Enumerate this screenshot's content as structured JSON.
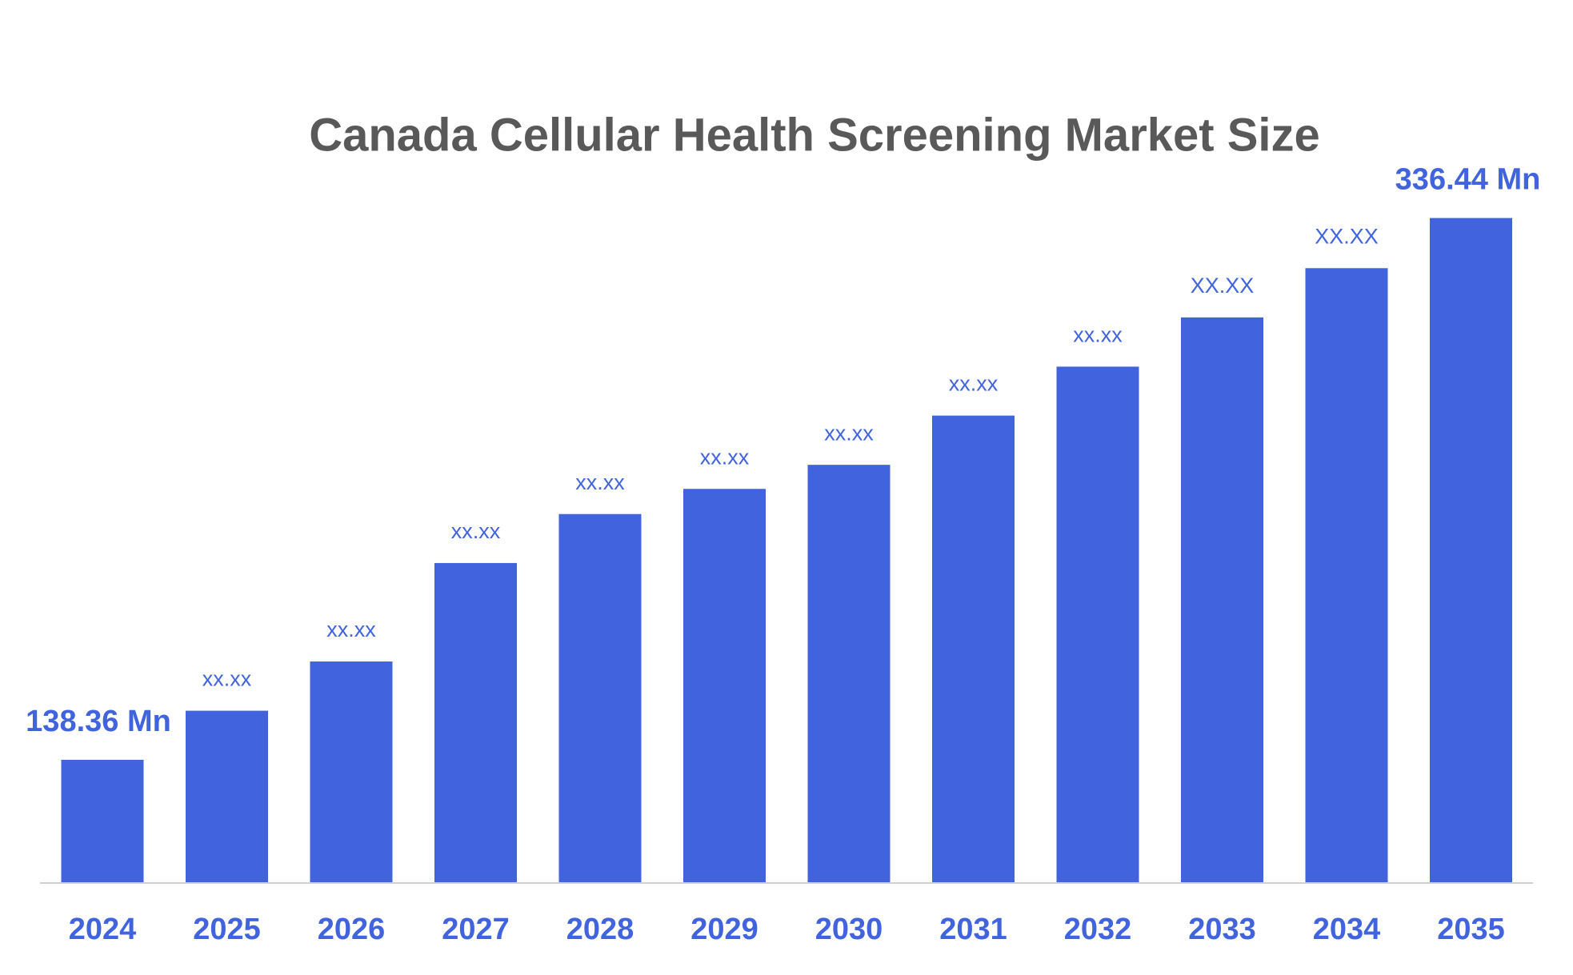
{
  "chart_data": {
    "type": "bar",
    "title": "Canada Cellular Health Screening Market Size",
    "categories": [
      "2024",
      "2025",
      "2026",
      "2027",
      "2028",
      "2029",
      "2030",
      "2031",
      "2032",
      "2033",
      "2034",
      "2035"
    ],
    "values": [
      138.36,
      156.3,
      174.3,
      210.3,
      228.2,
      237.4,
      246.2,
      264.2,
      282.1,
      300.1,
      318.1,
      336.44
    ],
    "value_labels": [
      "138.36 Mn",
      "xx.xx",
      "xx.xx",
      "xx.xx",
      "xx.xx",
      "xx.xx",
      "xx.xx",
      "xx.xx",
      "xx.xx",
      "XX.XX",
      "XX.XX",
      "336.44 Mn"
    ],
    "color": "#4164de",
    "ylim": [
      93.6,
      360
    ]
  }
}
